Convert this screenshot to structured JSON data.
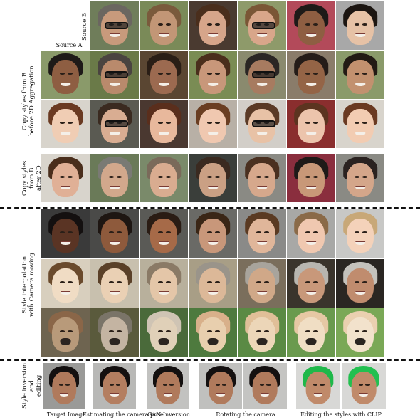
{
  "labels": {
    "source_b": "Source B",
    "source_a": "Source A",
    "copy_before": "Copy styles from B\nbefore 2D Aggregation",
    "copy_after": "Copy styles from B\nafter 2D Aggregation",
    "interp": "Style interpolation\nwith Camera moving",
    "inversion": "Style inversion and\nediting"
  },
  "captions": {
    "target": "Target Image",
    "camera_pose": "Estimating the camera pose",
    "gan_inversion": "GAN Inversion",
    "rotating": "Rotating the camera",
    "clip": "Editing the styles with CLIP"
  },
  "grid_rows": [
    {
      "name": "source-b-row",
      "bg": [
        "#6f7d5a",
        "#7a8a58",
        "#4a3a30",
        "#8e9a6a",
        "#b34a5a",
        "#a8a8a8"
      ],
      "skin": [
        "#c89a7c",
        "#c29676",
        "#d6a58a",
        "#d8a68a",
        "#8e5e42",
        "#e6c2a6"
      ],
      "hair": [
        "#6b6660",
        "#7a5a3c",
        "#4a2e1c",
        "#7a5636",
        "#1e1a18",
        "#1c1612"
      ],
      "glasses": [
        true,
        false,
        false,
        true,
        false,
        false
      ]
    },
    {
      "name": "source-a-row",
      "bg": [
        "#8a9a6a",
        "#6a7a48",
        "#5a4632",
        "#7a8c54",
        "#8a8a6e",
        "#8a7c6a",
        "#8a9a6a"
      ],
      "skin": [
        "#8e5e42",
        "#b98a6c",
        "#9c6a50",
        "#c8977a",
        "#a77b60",
        "#946446",
        "#c2916f"
      ],
      "hair": [
        "#1e1a18",
        "#4a4440",
        "#2a1e16",
        "#4a2e1c",
        "#2a2624",
        "#241c18",
        "#221a14"
      ],
      "glasses": [
        false,
        true,
        false,
        false,
        true,
        false,
        false
      ]
    },
    {
      "name": "source-a-row-2",
      "bg": [
        "#d8d4cc",
        "#5a5a52",
        "#4a3830",
        "#b8b0a6",
        "#d2cec8",
        "#8a2e2e",
        "#d8d4cc"
      ],
      "skin": [
        "#f0cdb4",
        "#d9ad92",
        "#e8b89c",
        "#f0c8b0",
        "#e8c2a6",
        "#ecc4ac",
        "#f2ccb2"
      ],
      "hair": [
        "#6a3a22",
        "#3a2a20",
        "#5a2e1c",
        "#6a3e22",
        "#5a3a26",
        "#5c3420",
        "#6a3a22"
      ],
      "glasses": [
        false,
        true,
        false,
        false,
        true,
        false,
        false
      ]
    },
    {
      "name": "after-aggregation-row",
      "bg": [
        "#d8d4cc",
        "#6a7a58",
        "#7a8a6a",
        "#3a3e3a",
        "#8a8a84",
        "#8a2e3e",
        "#8a8a84"
      ],
      "skin": [
        "#e0b096",
        "#d2a88c",
        "#d9ac90",
        "#caa084",
        "#d6a88c",
        "#c89878",
        "#d4a68a"
      ],
      "hair": [
        "#4a2e1c",
        "#7a7a74",
        "#7a6a5a",
        "#3a2a20",
        "#4a3020",
        "#1e1a18",
        "#2a2220"
      ],
      "glasses": [
        false,
        false,
        false,
        false,
        false,
        false,
        false
      ]
    },
    {
      "name": "interp-row-1",
      "bg": [
        "#3a3a3a",
        "#4a4a48",
        "#5a5a56",
        "#6a6a66",
        "#8a8a88",
        "#a8a8a6",
        "#c8c8c6"
      ],
      "skin": [
        "#5a3424",
        "#8e5a3c",
        "#a66a48",
        "#c8977a",
        "#e0b69a",
        "#f0c8b0",
        "#f4d2ba"
      ],
      "hair": [
        "#141010",
        "#1e1612",
        "#2a1c14",
        "#3a2616",
        "#5a3a22",
        "#8a6a48",
        "#c8a878"
      ],
      "glasses": [
        false,
        false,
        false,
        false,
        false,
        false,
        false
      ]
    },
    {
      "name": "interp-row-2",
      "bg": [
        "#d8cfbe",
        "#c8c0ae",
        "#b8b09c",
        "#a89e86",
        "#7a6e5c",
        "#3a342c",
        "#2a2622"
      ],
      "skin": [
        "#f0dcc4",
        "#ead0b4",
        "#e4c6a8",
        "#dcb898",
        "#d0a888",
        "#c8987a",
        "#c08c6e"
      ],
      "hair": [
        "#6a4a2c",
        "#5a4028",
        "#8a7a66",
        "#9a948a",
        "#a8a49c",
        "#b8b6b0",
        "#c4c2bc"
      ],
      "glasses": [
        false,
        false,
        false,
        false,
        false,
        false,
        false
      ]
    },
    {
      "name": "interp-row-3",
      "bg": [
        "#6e6450",
        "#5a5a3c",
        "#4a6a3a",
        "#4e7a3e",
        "#5a8a44",
        "#6a9a4e",
        "#7aa856"
      ],
      "skin": [
        "#b89a7a",
        "#c4b4a2",
        "#e0d0b8",
        "#e8cfae",
        "#ecd6b8",
        "#f0dec4",
        "#f2e2cc"
      ],
      "hair": [
        "#8a6648",
        "#7a7468",
        "#cfc4b4",
        "#d8b08a",
        "#e0bf98",
        "#e6c8a4",
        "#ead0b0"
      ],
      "dog": true
    }
  ],
  "bottom_tiles": [
    {
      "name": "target-image",
      "bg": "#9a9a98",
      "skin": "#b07a5c",
      "hair": "#141010"
    },
    {
      "name": "camera-pose",
      "bg": "#b8b8b6",
      "skin": "#b47e60",
      "hair": "#141010"
    },
    {
      "name": "gan-inversion",
      "bg": "#c2c2c0",
      "skin": "#b07a5c",
      "hair": "#141010"
    },
    {
      "name": "rotating-1",
      "bg": "#c0c0be",
      "skin": "#b07a5c",
      "hair": "#141010"
    },
    {
      "name": "rotating-2",
      "bg": "#c4c4c2",
      "skin": "#b07a5c",
      "hair": "#141010"
    },
    {
      "name": "clip-1",
      "bg": "#d8d8d6",
      "skin": "#c08a6a",
      "hair": "#1fb84a"
    },
    {
      "name": "clip-2",
      "bg": "#d8d8d6",
      "skin": "#c08a6a",
      "hair": "#22c050"
    }
  ]
}
